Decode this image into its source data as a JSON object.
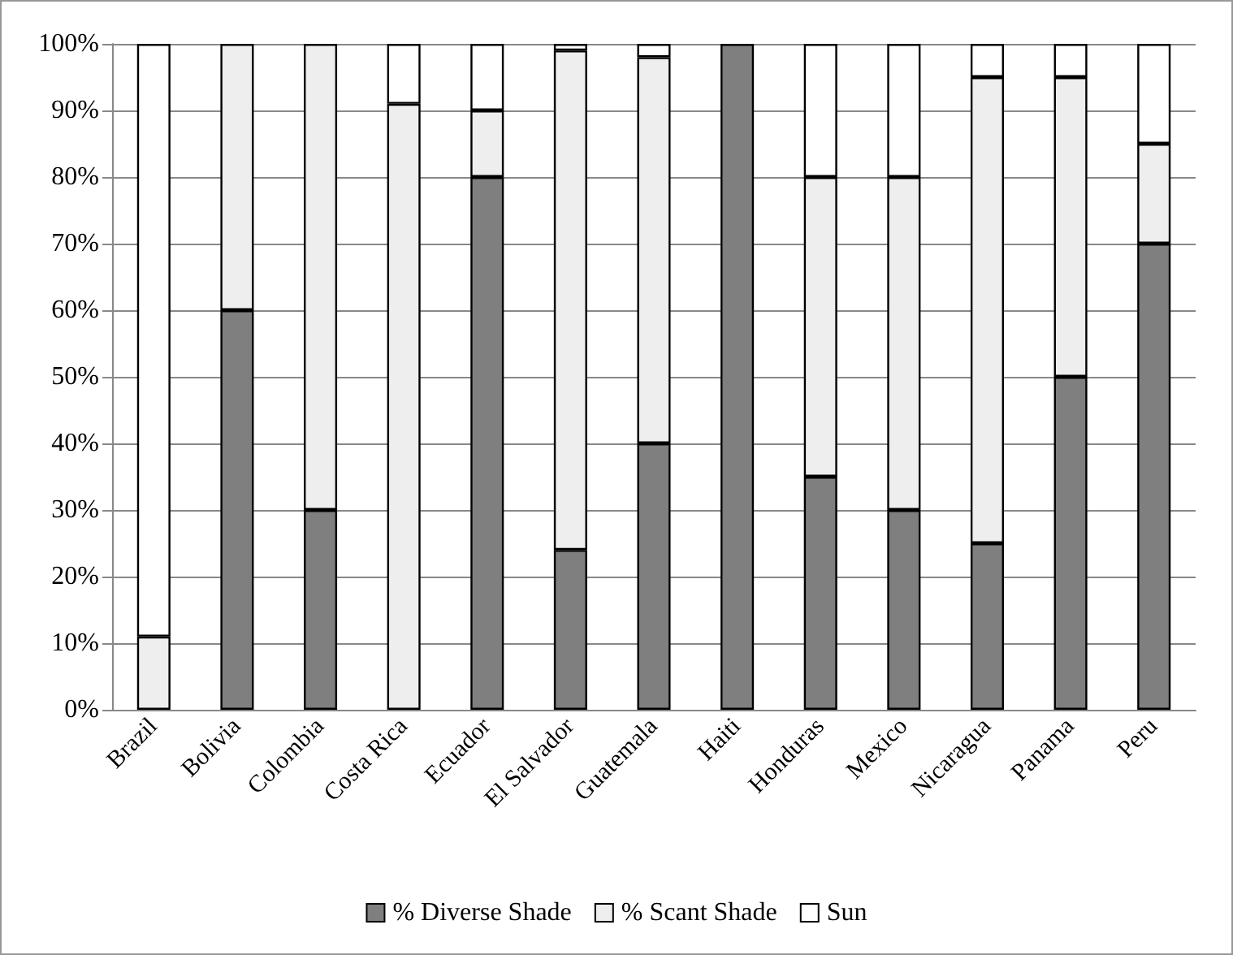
{
  "chart_data": {
    "type": "bar",
    "stacked": true,
    "categories": [
      "Brazil",
      "Bolivia",
      "Colombia",
      "Costa Rica",
      "Ecuador",
      "El Salvador",
      "Guatemala",
      "Haiti",
      "Honduras",
      "Mexico",
      "Nicaragua",
      "Panama",
      "Peru"
    ],
    "series": [
      {
        "name": "% Diverse Shade",
        "color": "#7f7f7f",
        "values": [
          0,
          60,
          30,
          0,
          80,
          24,
          40,
          100,
          35,
          30,
          25,
          50,
          70
        ]
      },
      {
        "name": "% Scant Shade",
        "color": "#eeeeee",
        "values": [
          11,
          40,
          70,
          91,
          10,
          75,
          58,
          0,
          45,
          50,
          70,
          45,
          15
        ]
      },
      {
        "name": "Sun",
        "color": "#ffffff",
        "values": [
          89,
          0,
          0,
          9,
          10,
          1,
          2,
          0,
          20,
          20,
          5,
          5,
          15
        ]
      }
    ],
    "ylim": [
      0,
      100
    ],
    "yticks": [
      {
        "value": 0,
        "label": "0%"
      },
      {
        "value": 10,
        "label": "10%"
      },
      {
        "value": 20,
        "label": "20%"
      },
      {
        "value": 30,
        "label": "30%"
      },
      {
        "value": 40,
        "label": "40%"
      },
      {
        "value": 50,
        "label": "50%"
      },
      {
        "value": 60,
        "label": "60%"
      },
      {
        "value": 70,
        "label": "70%"
      },
      {
        "value": 80,
        "label": "80%"
      },
      {
        "value": 90,
        "label": "90%"
      },
      {
        "value": 100,
        "label": "100%"
      }
    ],
    "grid": "y",
    "legend": "bottom"
  }
}
